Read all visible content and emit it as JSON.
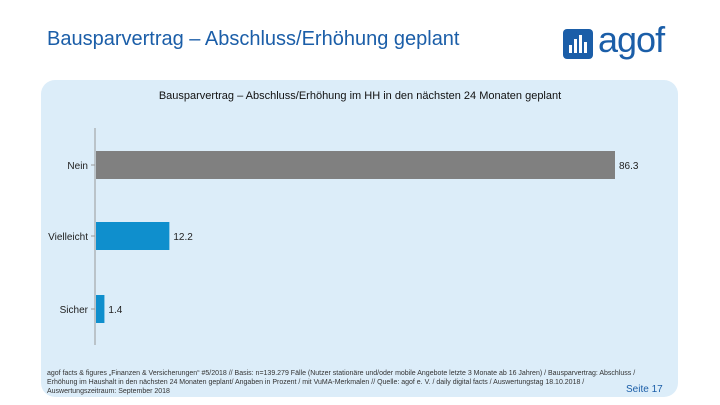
{
  "slide": {
    "title": "Bausparvertrag – Abschluss/Erhöhung geplant",
    "logo_text": "agof",
    "page": "Seite 17",
    "footnote": "agof facts & figures „Finanzen & Versicherungen“ #5/2018 // Basis: n=139.279 Fälle (Nutzer stationäre und/oder mobile Angebote letzte 3 Monate ab 16 Jahren) / Bausparvertrag: Abschluss / Erhöhung im Haushalt in den nächsten 24 Monaten geplant/ Angaben in Prozent / mit VuMA-Merkmalen // Quelle: agof e. V. / daily digital facts / Auswertungstag 18.10.2018 / Auswertungszeitraum: September 2018"
  },
  "chart_data": {
    "type": "bar",
    "orientation": "horizontal",
    "title": "Bausparvertrag – Abschluss/Erhöhung im HH in den nächsten 24 Monaten geplant",
    "categories": [
      "Nein",
      "Vielleicht",
      "Sicher"
    ],
    "values": [
      86.3,
      12.2,
      1.4
    ],
    "value_labels": [
      "86.3",
      "12.2",
      "1.4"
    ],
    "xlim": [
      0,
      86.3
    ],
    "grid": false,
    "legend": "none",
    "colors": [
      "#808080",
      "#0f8fcd",
      "#0f8fcd"
    ]
  }
}
